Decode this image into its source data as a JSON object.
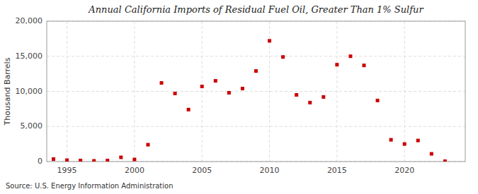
{
  "chart_data": {
    "type": "scatter",
    "title": "Annual California Imports of Residual Fuel Oil, Greater Than 1% Sulfur",
    "ylabel": "Thousand Barrels",
    "source": "Source: U.S. Energy Information Administration",
    "color": "#cc0000",
    "marker": "square",
    "grid": true,
    "xlim": [
      1993.5,
      2024.5
    ],
    "xticks": [
      1995,
      2000,
      2005,
      2010,
      2015,
      2020
    ],
    "ylim": [
      0,
      20000
    ],
    "yticks": [
      0,
      {
        "value": 5000,
        "label": "5,000"
      },
      {
        "value": 10000,
        "label": "10,000"
      },
      {
        "value": 15000,
        "label": "15,000"
      },
      {
        "value": 20000,
        "label": "20,000"
      }
    ],
    "x": [
      1994,
      1995,
      1996,
      1997,
      1998,
      1999,
      2000,
      2001,
      2002,
      2003,
      2004,
      2005,
      2006,
      2007,
      2008,
      2009,
      2010,
      2011,
      2012,
      2013,
      2014,
      2015,
      2016,
      2017,
      2018,
      2019,
      2020,
      2021,
      2022,
      2023
    ],
    "values": [
      350,
      200,
      150,
      100,
      150,
      600,
      300,
      2400,
      11200,
      9700,
      7400,
      10700,
      11500,
      9800,
      10400,
      12900,
      17200,
      14900,
      9500,
      8400,
      9200,
      13800,
      15000,
      13700,
      8700,
      3100,
      2500,
      3000,
      1100,
      50
    ]
  }
}
